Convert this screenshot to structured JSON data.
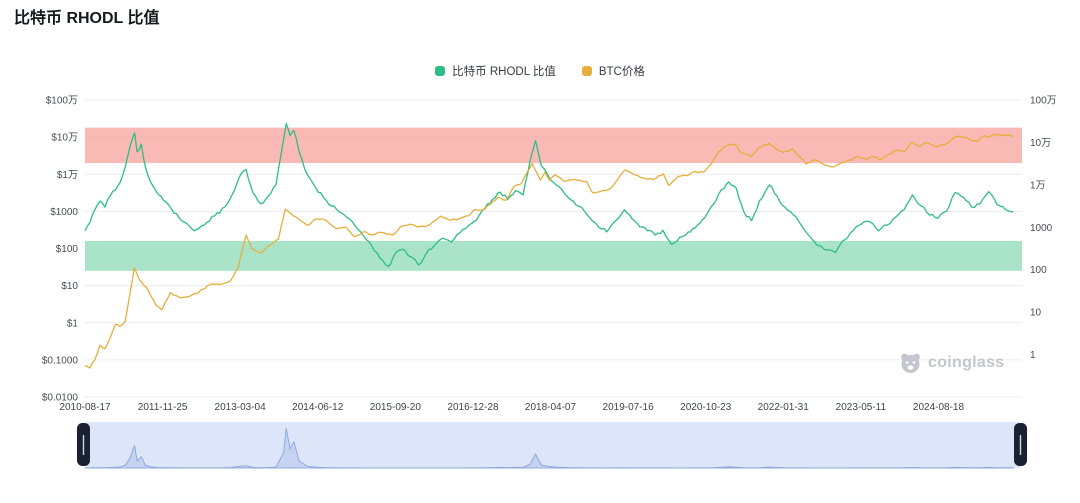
{
  "page": {
    "title": "比特币 RHODL 比值"
  },
  "legend": {
    "items": [
      {
        "label": "比特币 RHODL 比值",
        "color": "#2EBD85"
      },
      {
        "label": "BTC价格",
        "color": "#E6AE3C"
      }
    ]
  },
  "watermark": {
    "text": "coinglass",
    "icon": "bear-icon"
  },
  "chart_data": {
    "type": "line",
    "title": "比特币 RHODL 比值",
    "x_axis": {
      "range": [
        "2010-08-17",
        "2026-01-01"
      ],
      "tick_labels": [
        "2010-08-17",
        "2011-11-25",
        "2013-03-04",
        "2014-06-12",
        "2015-09-20",
        "2016-12-28",
        "2018-04-07",
        "2019-07-16",
        "2020-10-23",
        "2022-01-31",
        "2023-05-11",
        "2024-08-18"
      ]
    },
    "y_axis_left": {
      "scale": "log",
      "range": [
        0.01,
        1000000
      ],
      "tick_labels": [
        "$100万",
        "$10万",
        "$1万",
        "$1000",
        "$100",
        "$10",
        "$1",
        "$0.1000",
        "$0.0100"
      ],
      "tick_values": [
        1000000,
        100000,
        10000,
        1000,
        100,
        10,
        1,
        0.1,
        0.01
      ]
    },
    "y_axis_right": {
      "scale": "log",
      "range": [
        0.1,
        1000000
      ],
      "tick_labels": [
        "100万",
        "10万",
        "1万",
        "1000",
        "100",
        "10",
        "1"
      ],
      "tick_values": [
        1000000,
        100000,
        10000,
        1000,
        100,
        10,
        1
      ]
    },
    "bands": [
      {
        "name": "overheat-zone",
        "color": "#F8A8A1",
        "opacity": 0.8,
        "from": 20000,
        "to": 180000
      },
      {
        "name": "accumulation-zone",
        "color": "#9ADFBE",
        "opacity": 0.85,
        "from": 25,
        "to": 160
      }
    ],
    "series": [
      {
        "name": "比特币 RHODL 比值",
        "color": "#2EBD85",
        "axis": "left",
        "points": [
          [
            "2010-08-17",
            300
          ],
          [
            "2010-09-15",
            500
          ],
          [
            "2010-10-15",
            1100
          ],
          [
            "2010-11-15",
            1900
          ],
          [
            "2010-12-15",
            1300
          ],
          [
            "2011-01-15",
            2600
          ],
          [
            "2011-02-15",
            3800
          ],
          [
            "2011-03-15",
            6000
          ],
          [
            "2011-04-15",
            16000
          ],
          [
            "2011-05-15",
            60000
          ],
          [
            "2011-06-10",
            130000
          ],
          [
            "2011-06-25",
            40000
          ],
          [
            "2011-07-20",
            65000
          ],
          [
            "2011-08-15",
            15000
          ],
          [
            "2011-09-15",
            6000
          ],
          [
            "2011-11-01",
            2800
          ],
          [
            "2011-12-15",
            1800
          ],
          [
            "2012-02-01",
            900
          ],
          [
            "2012-04-01",
            520
          ],
          [
            "2012-06-01",
            300
          ],
          [
            "2012-08-01",
            430
          ],
          [
            "2012-10-01",
            750
          ],
          [
            "2012-12-01",
            1300
          ],
          [
            "2013-01-15",
            2800
          ],
          [
            "2013-03-05",
            9500
          ],
          [
            "2013-04-09",
            13500
          ],
          [
            "2013-05-20",
            3200
          ],
          [
            "2013-07-05",
            1600
          ],
          [
            "2013-08-20",
            2600
          ],
          [
            "2013-10-05",
            5200
          ],
          [
            "2013-11-20",
            90000
          ],
          [
            "2013-12-05",
            230000
          ],
          [
            "2013-12-28",
            110000
          ],
          [
            "2014-01-20",
            150000
          ],
          [
            "2014-02-20",
            40000
          ],
          [
            "2014-04-10",
            10000
          ],
          [
            "2014-06-01",
            4200
          ],
          [
            "2014-08-01",
            2000
          ],
          [
            "2014-10-01",
            1150
          ],
          [
            "2014-12-01",
            700
          ],
          [
            "2015-01-20",
            420
          ],
          [
            "2015-03-10",
            230
          ],
          [
            "2015-05-01",
            120
          ],
          [
            "2015-06-20",
            55
          ],
          [
            "2015-08-10",
            33
          ],
          [
            "2015-09-20",
            75
          ],
          [
            "2015-11-05",
            95
          ],
          [
            "2015-12-20",
            60
          ],
          [
            "2016-02-05",
            36
          ],
          [
            "2016-03-20",
            70
          ],
          [
            "2016-05-10",
            120
          ],
          [
            "2016-07-01",
            190
          ],
          [
            "2016-08-20",
            150
          ],
          [
            "2016-10-10",
            260
          ],
          [
            "2016-12-01",
            420
          ],
          [
            "2017-01-20",
            600
          ],
          [
            "2017-03-10",
            1200
          ],
          [
            "2017-04-25",
            2100
          ],
          [
            "2017-06-10",
            3300
          ],
          [
            "2017-07-25",
            2100
          ],
          [
            "2017-09-10",
            3600
          ],
          [
            "2017-10-25",
            2800
          ],
          [
            "2017-12-05",
            22000
          ],
          [
            "2018-01-08",
            80000
          ],
          [
            "2018-02-10",
            17000
          ],
          [
            "2018-03-25",
            9000
          ],
          [
            "2018-05-10",
            5200
          ],
          [
            "2018-07-01",
            3000
          ],
          [
            "2018-08-20",
            1900
          ],
          [
            "2018-10-10",
            1300
          ],
          [
            "2018-12-01",
            650
          ],
          [
            "2019-01-20",
            380
          ],
          [
            "2019-03-10",
            280
          ],
          [
            "2019-04-25",
            520
          ],
          [
            "2019-06-25",
            1100
          ],
          [
            "2019-08-10",
            620
          ],
          [
            "2019-09-25",
            380
          ],
          [
            "2019-11-10",
            300
          ],
          [
            "2019-12-25",
            230
          ],
          [
            "2020-02-10",
            310
          ],
          [
            "2020-04-01",
            130
          ],
          [
            "2020-05-20",
            200
          ],
          [
            "2020-07-10",
            280
          ],
          [
            "2020-09-01",
            420
          ],
          [
            "2020-10-20",
            700
          ],
          [
            "2020-12-10",
            1600
          ],
          [
            "2021-01-25",
            3800
          ],
          [
            "2021-03-10",
            6200
          ],
          [
            "2021-04-25",
            4200
          ],
          [
            "2021-06-10",
            950
          ],
          [
            "2021-07-25",
            560
          ],
          [
            "2021-09-10",
            1900
          ],
          [
            "2021-11-10",
            5200
          ],
          [
            "2021-12-25",
            2600
          ],
          [
            "2022-02-10",
            1300
          ],
          [
            "2022-04-01",
            800
          ],
          [
            "2022-05-20",
            420
          ],
          [
            "2022-07-10",
            210
          ],
          [
            "2022-09-01",
            120
          ],
          [
            "2022-10-20",
            92
          ],
          [
            "2022-12-10",
            78
          ],
          [
            "2023-02-01",
            170
          ],
          [
            "2023-03-25",
            300
          ],
          [
            "2023-05-15",
            460
          ],
          [
            "2023-07-05",
            520
          ],
          [
            "2023-08-25",
            300
          ],
          [
            "2023-10-15",
            430
          ],
          [
            "2023-12-05",
            700
          ],
          [
            "2024-01-25",
            1100
          ],
          [
            "2024-03-15",
            2800
          ],
          [
            "2024-05-05",
            1400
          ],
          [
            "2024-06-25",
            800
          ],
          [
            "2024-08-15",
            650
          ],
          [
            "2024-10-05",
            1000
          ],
          [
            "2024-11-25",
            3200
          ],
          [
            "2025-01-15",
            2400
          ],
          [
            "2025-03-05",
            1300
          ],
          [
            "2025-04-25",
            1600
          ],
          [
            "2025-06-15",
            3400
          ],
          [
            "2025-08-05",
            1500
          ],
          [
            "2025-09-25",
            1100
          ],
          [
            "2025-11-10",
            950
          ]
        ]
      },
      {
        "name": "BTC价格",
        "color": "#E6AE3C",
        "axis": "left",
        "points": [
          [
            "2010-08-17",
            0.07
          ],
          [
            "2010-09-15",
            0.06
          ],
          [
            "2010-10-15",
            0.1
          ],
          [
            "2010-11-15",
            0.25
          ],
          [
            "2010-12-15",
            0.2
          ],
          [
            "2011-01-15",
            0.4
          ],
          [
            "2011-02-15",
            0.9
          ],
          [
            "2011-03-15",
            0.8
          ],
          [
            "2011-04-15",
            1.1
          ],
          [
            "2011-05-15",
            7
          ],
          [
            "2011-06-08",
            30
          ],
          [
            "2011-07-10",
            14
          ],
          [
            "2011-08-20",
            9
          ],
          [
            "2011-10-15",
            3
          ],
          [
            "2011-11-20",
            2.2
          ],
          [
            "2012-01-10",
            6.5
          ],
          [
            "2012-03-01",
            4.9
          ],
          [
            "2012-05-01",
            5.1
          ],
          [
            "2012-07-01",
            6.8
          ],
          [
            "2012-09-01",
            10.5
          ],
          [
            "2012-11-01",
            10.8
          ],
          [
            "2013-01-05",
            13.5
          ],
          [
            "2013-02-20",
            30
          ],
          [
            "2013-04-09",
            230
          ],
          [
            "2013-05-15",
            100
          ],
          [
            "2013-07-05",
            75
          ],
          [
            "2013-08-20",
            115
          ],
          [
            "2013-10-20",
            180
          ],
          [
            "2013-11-30",
            1150
          ],
          [
            "2014-01-05",
            850
          ],
          [
            "2014-02-20",
            600
          ],
          [
            "2014-04-10",
            420
          ],
          [
            "2014-06-01",
            630
          ],
          [
            "2014-08-01",
            580
          ],
          [
            "2014-10-01",
            340
          ],
          [
            "2014-12-01",
            370
          ],
          [
            "2015-01-15",
            210
          ],
          [
            "2015-03-10",
            280
          ],
          [
            "2015-05-01",
            235
          ],
          [
            "2015-07-01",
            270
          ],
          [
            "2015-09-01",
            230
          ],
          [
            "2015-11-04",
            410
          ],
          [
            "2015-12-15",
            450
          ],
          [
            "2016-02-01",
            380
          ],
          [
            "2016-04-01",
            420
          ],
          [
            "2016-06-18",
            750
          ],
          [
            "2016-08-01",
            600
          ],
          [
            "2016-10-01",
            610
          ],
          [
            "2016-12-01",
            760
          ],
          [
            "2017-01-05",
            1100
          ],
          [
            "2017-03-10",
            1150
          ],
          [
            "2017-05-25",
            2400
          ],
          [
            "2017-07-15",
            2000
          ],
          [
            "2017-09-01",
            4700
          ],
          [
            "2017-10-15",
            5600
          ],
          [
            "2017-12-17",
            19500
          ],
          [
            "2018-02-05",
            7000
          ],
          [
            "2018-03-05",
            11500
          ],
          [
            "2018-04-01",
            6900
          ],
          [
            "2018-05-05",
            9800
          ],
          [
            "2018-07-01",
            6400
          ],
          [
            "2018-09-01",
            7200
          ],
          [
            "2018-11-10",
            6400
          ],
          [
            "2018-12-15",
            3200
          ],
          [
            "2019-02-01",
            3450
          ],
          [
            "2019-04-01",
            4100
          ],
          [
            "2019-06-26",
            13000
          ],
          [
            "2019-08-15",
            10200
          ],
          [
            "2019-10-15",
            8000
          ],
          [
            "2019-12-15",
            7200
          ],
          [
            "2020-02-12",
            10300
          ],
          [
            "2020-03-16",
            5000
          ],
          [
            "2020-05-10",
            8700
          ],
          [
            "2020-07-01",
            9100
          ],
          [
            "2020-08-20",
            11800
          ],
          [
            "2020-10-10",
            11400
          ],
          [
            "2020-11-25",
            19000
          ],
          [
            "2021-01-08",
            41000
          ],
          [
            "2021-02-21",
            57000
          ],
          [
            "2021-04-14",
            64000
          ],
          [
            "2021-05-25",
            38000
          ],
          [
            "2021-07-20",
            29800
          ],
          [
            "2021-09-05",
            51000
          ],
          [
            "2021-11-09",
            68000
          ],
          [
            "2021-12-20",
            47000
          ],
          [
            "2022-02-01",
            38500
          ],
          [
            "2022-03-28",
            47000
          ],
          [
            "2022-05-12",
            29000
          ],
          [
            "2022-06-18",
            18900
          ],
          [
            "2022-08-14",
            24400
          ],
          [
            "2022-09-25",
            18900
          ],
          [
            "2022-11-21",
            15800
          ],
          [
            "2023-01-14",
            21000
          ],
          [
            "2023-03-15",
            24500
          ],
          [
            "2023-04-14",
            30400
          ],
          [
            "2023-06-15",
            25100
          ],
          [
            "2023-07-15",
            30300
          ],
          [
            "2023-09-11",
            25100
          ],
          [
            "2023-10-25",
            34500
          ],
          [
            "2023-12-08",
            44000
          ],
          [
            "2024-01-23",
            39900
          ],
          [
            "2024-03-13",
            73000
          ],
          [
            "2024-05-01",
            57000
          ],
          [
            "2024-06-07",
            71000
          ],
          [
            "2024-08-05",
            54000
          ],
          [
            "2024-09-25",
            63000
          ],
          [
            "2024-11-22",
            99000
          ],
          [
            "2024-12-17",
            106000
          ],
          [
            "2025-02-01",
            97000
          ],
          [
            "2025-03-10",
            80000
          ],
          [
            "2025-04-08",
            76500
          ],
          [
            "2025-05-22",
            111000
          ],
          [
            "2025-06-22",
            101000
          ],
          [
            "2025-07-14",
            120000
          ],
          [
            "2025-08-14",
            118000
          ],
          [
            "2025-09-25",
            112000
          ],
          [
            "2025-11-10",
            103000
          ]
        ]
      }
    ],
    "navigator": {
      "source_series": "比特币 RHODL 比值",
      "background": "#DDE6F8",
      "area_fill": "#C5D3F1",
      "line_color": "#8FA8DE",
      "handle_color": "#1B2130"
    }
  }
}
